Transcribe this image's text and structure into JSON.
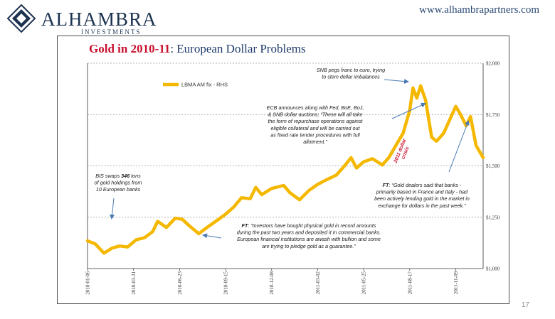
{
  "header": {
    "logo_name": "ALHAMBRA",
    "logo_sub": "INVESTMENTS",
    "url": "www.alhambrapartners.com",
    "slide_number": "17"
  },
  "colors": {
    "series": "#f5b800",
    "title_red": "#c8102e",
    "title_blue": "#1f3b6b",
    "arrow": "#4a7ab5",
    "crisis": "#c8102e"
  },
  "chart_data": {
    "type": "line",
    "title_part1": "Gold in 2010-11",
    "title_part2": ": European Dollar Problems",
    "legend": "LBMA AM fix - RHS",
    "y_axis_side": "right",
    "ylim": [
      1000,
      2000
    ],
    "y_ticks": [
      {
        "value": 1000,
        "label": "$1,000"
      },
      {
        "value": 1250,
        "label": "$1,250"
      },
      {
        "value": 1500,
        "label": "$1,500"
      },
      {
        "value": 1750,
        "label": "$1,750"
      },
      {
        "value": 2000,
        "label": "$2,000"
      }
    ],
    "x_ticks": [
      "2010-01-06",
      "2010-03-31",
      "2010-06-23",
      "2010-09-15",
      "2010-12-08",
      "2011-03-02",
      "2011-05-25",
      "2011-08-17",
      "2011-11-09"
    ],
    "series": [
      {
        "name": "LBMA AM fix - RHS",
        "x": [
          "2010-01-06",
          "2010-01-20",
          "2010-02-05",
          "2010-02-20",
          "2010-03-06",
          "2010-03-20",
          "2010-04-05",
          "2010-04-20",
          "2010-05-05",
          "2010-05-14",
          "2010-05-30",
          "2010-06-15",
          "2010-06-28",
          "2010-07-10",
          "2010-07-28",
          "2010-08-12",
          "2010-08-28",
          "2010-09-15",
          "2010-09-30",
          "2010-10-14",
          "2010-10-30",
          "2010-11-09",
          "2010-11-20",
          "2010-12-08",
          "2010-12-30",
          "2011-01-10",
          "2011-01-28",
          "2011-02-14",
          "2011-03-02",
          "2011-03-20",
          "2011-04-05",
          "2011-04-20",
          "2011-05-02",
          "2011-05-12",
          "2011-05-25",
          "2011-06-10",
          "2011-06-28",
          "2011-07-10",
          "2011-07-25",
          "2011-08-05",
          "2011-08-17",
          "2011-08-23",
          "2011-08-30",
          "2011-09-06",
          "2011-09-15",
          "2011-09-26",
          "2011-10-05",
          "2011-10-18",
          "2011-11-09",
          "2011-11-18",
          "2011-11-28",
          "2011-12-06",
          "2011-12-16",
          "2011-12-29"
        ],
        "y": [
          1135,
          1120,
          1075,
          1100,
          1110,
          1105,
          1140,
          1150,
          1180,
          1230,
          1200,
          1245,
          1240,
          1210,
          1170,
          1200,
          1230,
          1265,
          1300,
          1345,
          1340,
          1395,
          1360,
          1390,
          1405,
          1370,
          1335,
          1380,
          1410,
          1435,
          1455,
          1500,
          1540,
          1490,
          1520,
          1535,
          1505,
          1540,
          1610,
          1660,
          1770,
          1880,
          1830,
          1890,
          1820,
          1640,
          1620,
          1660,
          1790,
          1750,
          1695,
          1740,
          1600,
          1540
        ]
      }
    ],
    "annotations": [
      {
        "lines": [
          "SNB pegs franc to euro, trying",
          "to stem dollar imbalances"
        ]
      },
      {
        "lines": [
          "ECB announces along with Fed, BoE, BoJ,",
          "& SNB dollar auctions; “These will all take",
          "the form of repurchase operations against",
          "eligible collateral and will be carried out",
          "as fixed rate tender procedures with full",
          "allotment.”"
        ]
      },
      {
        "lines": [
          "BIS swaps 346 tons",
          "of gold holdings from",
          "10 European banks"
        ]
      },
      {
        "lines": [
          "FT: “Gold dealers said that banks -",
          "primarily based in France and Italy - had",
          "been actively lending gold in the market in",
          "exchange for dollars in the past week.”"
        ]
      },
      {
        "lines": [
          "FT: “Investors have bought physical gold in record amounts",
          "during the past two years and deposited it in commercial banks.",
          "European financial institutions are awash with bullion and some",
          "are trying to pledge gold as a guarantee.”"
        ]
      }
    ],
    "crisis_label": [
      "2011 dollar",
      "crisis"
    ]
  }
}
